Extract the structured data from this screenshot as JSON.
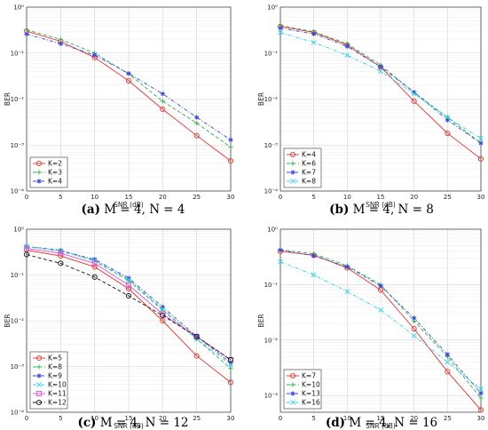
{
  "figure": {
    "panels": [
      {
        "caption_letter": "(a)",
        "caption_text": " M = 4, N = 4"
      },
      {
        "caption_letter": "(b)",
        "caption_text": " M = 4, N = 8"
      },
      {
        "caption_letter": "(c)",
        "caption_text": " M = 4, N = 12"
      },
      {
        "caption_letter": "(d)",
        "caption_text": " M = 4, N = 16"
      }
    ]
  },
  "chart_data": [
    {
      "type": "line",
      "title": "",
      "xlabel": "SNR (dB)",
      "ylabel": "BER",
      "yscale": "log",
      "x": [
        0,
        5,
        10,
        15,
        20,
        25,
        30
      ],
      "xticks": [
        "0",
        "5",
        "10",
        "15",
        "20",
        "25",
        "30"
      ],
      "yticks": [
        "10^{-4}",
        "10^{-3}",
        "10^{-2}",
        "10^{-1}",
        "10^{0}"
      ],
      "ylim": [
        0.0001,
        1
      ],
      "grid": true,
      "legend_position": "bottom-left",
      "series": [
        {
          "name": "K=2",
          "color": "#e8322d",
          "marker": "circle",
          "dash": "solid",
          "values": [
            0.3,
            0.18,
            0.08,
            0.025,
            0.006,
            0.0016,
            0.00045
          ]
        },
        {
          "name": "K=3",
          "color": "#2db04b",
          "marker": "plus",
          "dash": "dashed",
          "values": [
            0.32,
            0.2,
            0.1,
            0.035,
            0.009,
            0.003,
            0.0009
          ]
        },
        {
          "name": "K=4",
          "color": "#3a46e0",
          "marker": "star",
          "dash": "dashdot",
          "values": [
            0.26,
            0.16,
            0.09,
            0.036,
            0.013,
            0.004,
            0.0013
          ]
        }
      ]
    },
    {
      "type": "line",
      "title": "",
      "xlabel": "SNR (dB)",
      "ylabel": "BER",
      "yscale": "log",
      "x": [
        0,
        5,
        10,
        15,
        20,
        25,
        30
      ],
      "xticks": [
        "0",
        "5",
        "10",
        "15",
        "20",
        "25",
        "30"
      ],
      "yticks": [
        "10^{-4}",
        "10^{-3}",
        "10^{-2}",
        "10^{-1}",
        "10^{0}"
      ],
      "ylim": [
        0.0001,
        1
      ],
      "grid": true,
      "legend_position": "bottom-left",
      "series": [
        {
          "name": "K=4",
          "color": "#e8322d",
          "marker": "circle",
          "dash": "solid",
          "values": [
            0.38,
            0.28,
            0.15,
            0.05,
            0.009,
            0.0018,
            0.0005
          ]
        },
        {
          "name": "K=6",
          "color": "#2db04b",
          "marker": "plus",
          "dash": "dashed",
          "values": [
            0.4,
            0.29,
            0.16,
            0.055,
            0.014,
            0.004,
            0.0011
          ]
        },
        {
          "name": "K=7",
          "color": "#3a46e0",
          "marker": "star",
          "dash": "dashdot",
          "values": [
            0.35,
            0.26,
            0.14,
            0.05,
            0.014,
            0.0035,
            0.0011
          ]
        },
        {
          "name": "K=8",
          "color": "#2fd4e8",
          "marker": "x",
          "dash": "dashdot",
          "values": [
            0.28,
            0.17,
            0.09,
            0.04,
            0.013,
            0.004,
            0.0014
          ]
        }
      ]
    },
    {
      "type": "line",
      "title": "",
      "xlabel": "SNR (dB)",
      "ylabel": "BER",
      "yscale": "log",
      "x": [
        0,
        5,
        10,
        15,
        20,
        25,
        30
      ],
      "xticks": [
        "0",
        "5",
        "10",
        "15",
        "20",
        "25",
        "30"
      ],
      "yticks": [
        "10^{-4}",
        "10^{-3}",
        "10^{-2}",
        "10^{-1}",
        "10^{0}"
      ],
      "ylim": [
        0.0001,
        1
      ],
      "grid": true,
      "legend_position": "bottom-left",
      "series": [
        {
          "name": "K=5",
          "color": "#e8322d",
          "marker": "circle",
          "dash": "solid",
          "values": [
            0.35,
            0.26,
            0.15,
            0.05,
            0.01,
            0.0017,
            0.00045
          ]
        },
        {
          "name": "K=8",
          "color": "#2db04b",
          "marker": "plus",
          "dash": "dashed",
          "values": [
            0.42,
            0.35,
            0.2,
            0.075,
            0.017,
            0.004,
            0.0009
          ]
        },
        {
          "name": "K=9",
          "color": "#3a46e0",
          "marker": "star",
          "dash": "dashdot",
          "values": [
            0.42,
            0.34,
            0.22,
            0.085,
            0.02,
            0.0045,
            0.0012
          ]
        },
        {
          "name": "K=10",
          "color": "#2fd4e8",
          "marker": "x",
          "dash": "dashdot",
          "values": [
            0.42,
            0.33,
            0.21,
            0.08,
            0.018,
            0.004,
            0.0011
          ]
        },
        {
          "name": "K=11",
          "color": "#e04fd8",
          "marker": "square",
          "dash": "solid",
          "values": [
            0.38,
            0.3,
            0.18,
            0.06,
            0.014,
            0.0045,
            0.0014
          ]
        },
        {
          "name": "K=12",
          "color": "#111111",
          "marker": "circle",
          "dash": "dashed",
          "values": [
            0.28,
            0.18,
            0.09,
            0.035,
            0.013,
            0.0045,
            0.0014
          ]
        }
      ]
    },
    {
      "type": "line",
      "title": "",
      "xlabel": "SNR (dB)",
      "ylabel": "BER",
      "yscale": "log",
      "x": [
        0,
        5,
        10,
        15,
        20,
        25,
        30
      ],
      "xticks": [
        "0",
        "5",
        "10",
        "15",
        "20",
        "25",
        "30"
      ],
      "yticks": [
        "10^{-3}",
        "10^{-2}",
        "10^{-1}",
        "10^{0}"
      ],
      "ylim": [
        0.0005,
        1
      ],
      "grid": true,
      "legend_position": "bottom-left",
      "series": [
        {
          "name": "K=7",
          "color": "#e8322d",
          "marker": "circle",
          "dash": "solid",
          "values": [
            0.4,
            0.34,
            0.2,
            0.08,
            0.016,
            0.0027,
            0.00055
          ]
        },
        {
          "name": "K=10",
          "color": "#2db04b",
          "marker": "plus",
          "dash": "dashed",
          "values": [
            0.43,
            0.36,
            0.22,
            0.1,
            0.022,
            0.005,
            0.0009
          ]
        },
        {
          "name": "K=13",
          "color": "#3a46e0",
          "marker": "star",
          "dash": "dashdot",
          "values": [
            0.42,
            0.33,
            0.21,
            0.095,
            0.025,
            0.0055,
            0.0011
          ]
        },
        {
          "name": "K=16",
          "color": "#2fd4e8",
          "marker": "x",
          "dash": "dashdot",
          "values": [
            0.26,
            0.15,
            0.075,
            0.035,
            0.012,
            0.004,
            0.0013
          ]
        }
      ]
    }
  ]
}
